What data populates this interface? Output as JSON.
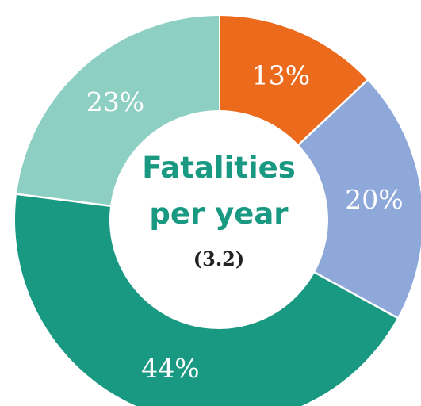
{
  "chart_data": {
    "type": "pie",
    "donut": true,
    "center_title_lines": [
      "Fatalities",
      "per year"
    ],
    "center_value": "(3.2)",
    "title_color": "#1a9982",
    "slices": [
      {
        "value": 13,
        "label": "13%",
        "color": "#ec6a1c"
      },
      {
        "value": 20,
        "label": "20%",
        "color": "#8ea8da"
      },
      {
        "value": 44,
        "label": "44%",
        "color": "#1a9982"
      },
      {
        "value": 23,
        "label": "23%",
        "color": "#8ecfc4"
      }
    ]
  }
}
